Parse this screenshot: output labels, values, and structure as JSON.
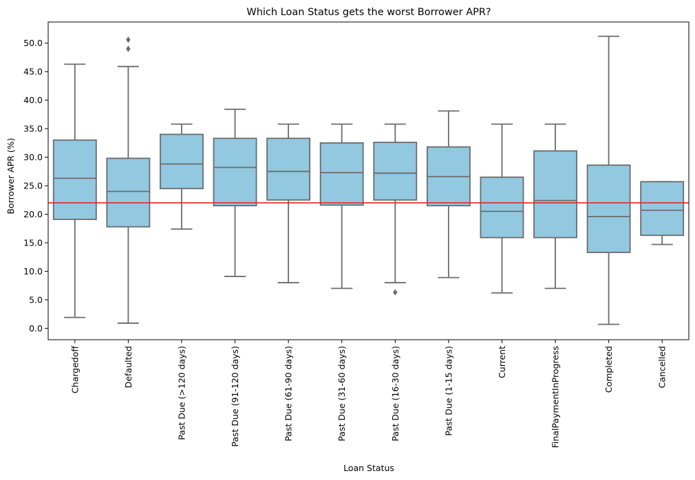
{
  "chart_data": {
    "type": "box",
    "title": "Which Loan Status gets the worst Borrower APR?",
    "xlabel": "Loan Status",
    "ylabel": "Borrower APR (%)",
    "ylim": [
      -2.0,
      53.7
    ],
    "yticks": [
      0,
      5,
      10,
      15,
      20,
      25,
      30,
      35,
      40,
      45,
      50
    ],
    "ytick_labels": [
      "0.0",
      "5.0",
      "10.0",
      "15.0",
      "20.0",
      "25.0",
      "30.0",
      "35.0",
      "40.0",
      "45.0",
      "50.0"
    ],
    "grid": false,
    "box_fill": "#92c8e0",
    "box_edge": "#6b6b6b",
    "reference_line": {
      "y": 22.0,
      "color": "#e8261c"
    },
    "categories": [
      "Chargedoff",
      "Defaulted",
      "Past Due (>120 days)",
      "Past Due (91-120 days)",
      "Past Due (61-90 days)",
      "Past Due (31-60 days)",
      "Past Due (16-30 days)",
      "Past Due (1-15 days)",
      "Current",
      "FinalPaymentInProgress",
      "Completed",
      "Cancelled"
    ],
    "boxes": [
      {
        "whislo": 1.9,
        "q1": 19.1,
        "med": 26.3,
        "q3": 33.0,
        "whishi": 46.3,
        "fliers": []
      },
      {
        "whislo": 0.9,
        "q1": 17.8,
        "med": 24.0,
        "q3": 29.8,
        "whishi": 45.9,
        "fliers": [
          49.0,
          50.6
        ]
      },
      {
        "whislo": 17.4,
        "q1": 24.5,
        "med": 28.8,
        "q3": 34.0,
        "whishi": 35.8,
        "fliers": []
      },
      {
        "whislo": 9.1,
        "q1": 21.5,
        "med": 28.2,
        "q3": 33.3,
        "whishi": 38.4,
        "fliers": []
      },
      {
        "whislo": 8.0,
        "q1": 22.5,
        "med": 27.5,
        "q3": 33.3,
        "whishi": 35.8,
        "fliers": []
      },
      {
        "whislo": 7.0,
        "q1": 21.6,
        "med": 27.3,
        "q3": 32.5,
        "whishi": 35.8,
        "fliers": []
      },
      {
        "whislo": 8.0,
        "q1": 22.5,
        "med": 27.2,
        "q3": 32.6,
        "whishi": 35.8,
        "fliers": [
          6.3
        ]
      },
      {
        "whislo": 8.9,
        "q1": 21.5,
        "med": 26.6,
        "q3": 31.8,
        "whishi": 38.1,
        "fliers": []
      },
      {
        "whislo": 6.2,
        "q1": 15.9,
        "med": 20.5,
        "q3": 26.5,
        "whishi": 35.8,
        "fliers": []
      },
      {
        "whislo": 7.0,
        "q1": 15.9,
        "med": 22.4,
        "q3": 31.1,
        "whishi": 35.8,
        "fliers": []
      },
      {
        "whislo": 0.7,
        "q1": 13.3,
        "med": 19.6,
        "q3": 28.6,
        "whishi": 51.2,
        "fliers": []
      },
      {
        "whislo": 14.7,
        "q1": 16.3,
        "med": 20.7,
        "q3": 25.7,
        "whishi": 25.7,
        "fliers": []
      }
    ]
  }
}
